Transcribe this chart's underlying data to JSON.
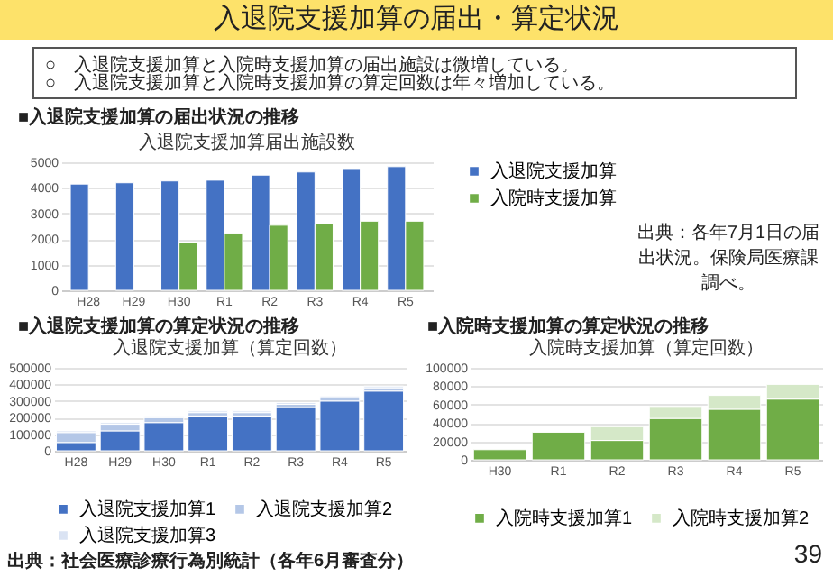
{
  "chart_data": [
    {
      "type": "bar",
      "title": "入退院支援加算届出施設数",
      "categories": [
        "H28",
        "H29",
        "H30",
        "R1",
        "R2",
        "R3",
        "R4",
        "R5"
      ],
      "series": [
        {
          "name": "入退院支援加算",
          "color": "#4472c4",
          "values": [
            4150,
            4200,
            4270,
            4300,
            4500,
            4620,
            4720,
            4830
          ]
        },
        {
          "name": "入院時支援加算",
          "color": "#70ad47",
          "values": [
            null,
            null,
            1850,
            2230,
            2540,
            2600,
            2700,
            2700
          ]
        }
      ],
      "ylim": [
        0,
        5000
      ],
      "yticks": [
        0,
        1000,
        2000,
        3000,
        4000,
        5000
      ],
      "grid": "y",
      "legend": "right",
      "annotations": [
        "入退院支援加算の届出・算定状況",
        "○　入退院支援加算と入院時支援加算の届出施設は微増している。",
        "○　入退院支援加算と入院時支援加算の算定回数は年々増加している。",
        "■入退院支援加算の届出状況の推移",
        "出典：各年7月1日の届出状況。保険局医療課調べ。"
      ]
    },
    {
      "type": "bar",
      "title": "入退院支援加算（算定回数）",
      "categories": [
        "H28",
        "H29",
        "H30",
        "R1",
        "R2",
        "R3",
        "R4",
        "R5"
      ],
      "stacked": true,
      "series": [
        {
          "name": "入退院支援加算1",
          "color": "#4472c4",
          "values": [
            50000,
            120000,
            170000,
            210000,
            210000,
            260000,
            300000,
            360000
          ]
        },
        {
          "name": "入退院支援加算2",
          "color": "#b4c7e7",
          "values": [
            60000,
            40000,
            30000,
            20000,
            20000,
            20000,
            20000,
            20000
          ]
        },
        {
          "name": "入退院支援加算3",
          "color": "#dae3f3",
          "values": [
            10000,
            10000,
            10000,
            10000,
            10000,
            10000,
            10000,
            10000
          ]
        }
      ],
      "ylim": [
        0,
        500000
      ],
      "yticks": [
        0,
        100000,
        200000,
        300000,
        400000,
        500000
      ],
      "grid": "y",
      "legend": "bottom",
      "annotations": [
        "■入退院支援加算の算定状況の推移",
        "出典：社会医療診療行為別統計（各年6月審査分）"
      ]
    },
    {
      "type": "bar",
      "title": "入院時支援加算（算定回数）",
      "categories": [
        "H30",
        "R1",
        "R2",
        "R3",
        "R4",
        "R5"
      ],
      "stacked": true,
      "series": [
        {
          "name": "入院時支援加算1",
          "color": "#70ad47",
          "values": [
            11000,
            30000,
            21000,
            45000,
            55000,
            66000
          ]
        },
        {
          "name": "入院時支援加算2",
          "color": "#d5e8c8",
          "values": [
            null,
            null,
            15000,
            13000,
            15000,
            16000
          ]
        }
      ],
      "ylim": [
        0,
        100000
      ],
      "yticks": [
        0,
        20000,
        40000,
        60000,
        80000,
        100000
      ],
      "grid": "y",
      "legend": "bottom",
      "annotations": [
        "■入院時支援加算の算定状況の推移",
        "39"
      ]
    }
  ]
}
